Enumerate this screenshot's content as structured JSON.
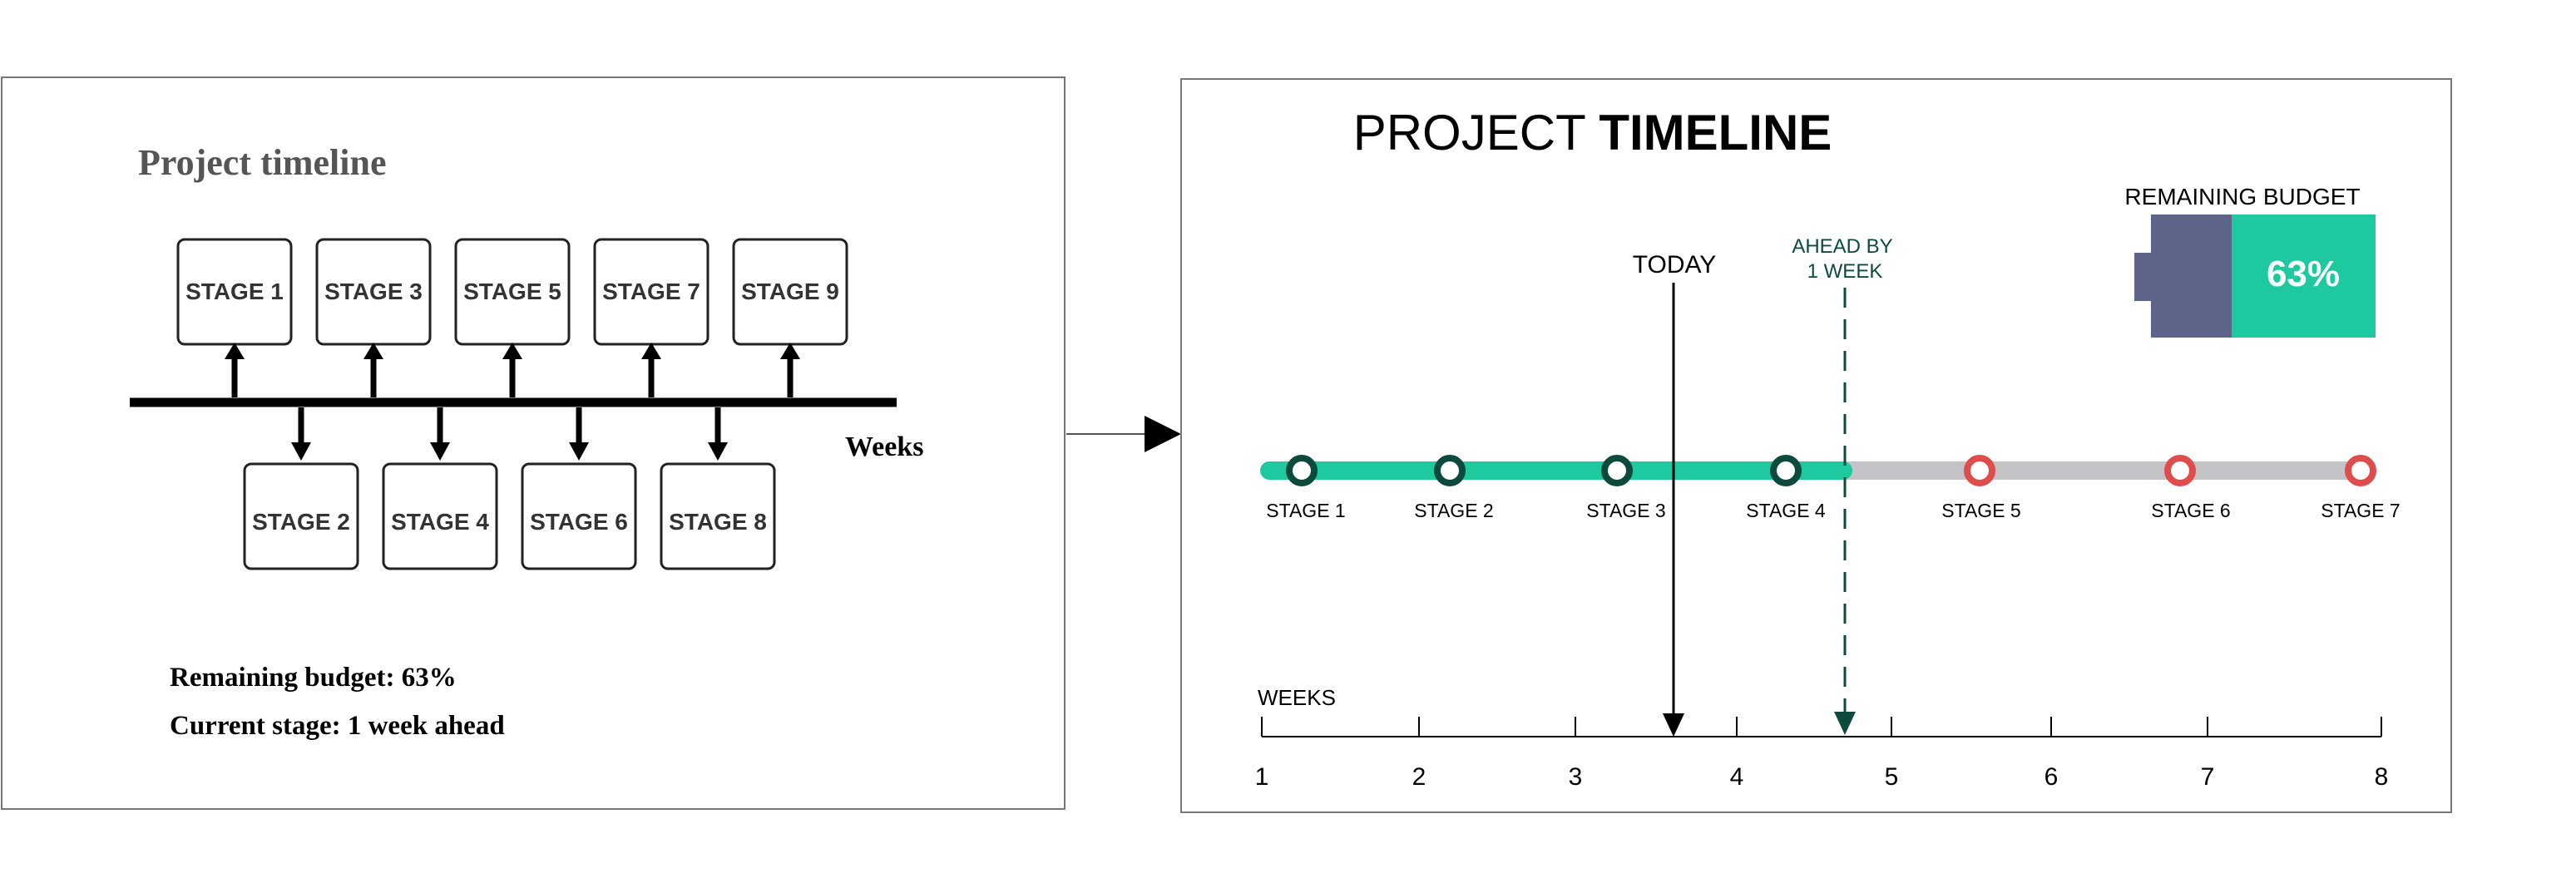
{
  "left_panel": {
    "title": "Project timeline",
    "top_stages": [
      "STAGE 1",
      "STAGE 3",
      "STAGE 5",
      "STAGE 7",
      "STAGE 9"
    ],
    "bottom_stages": [
      "STAGE 2",
      "STAGE 4",
      "STAGE 6",
      "STAGE 8"
    ],
    "axis_label": "Weeks",
    "notes": [
      "Remaining budget: 63%",
      "Current stage: 1 week ahead"
    ]
  },
  "right_panel": {
    "title_light": "PROJECT ",
    "title_bold": "TIMELINE",
    "today_label": "TODAY",
    "ahead_label_line1": "AHEAD BY",
    "ahead_label_line2": "1 WEEK",
    "budget_label": "REMAINING BUDGET",
    "budget_value": "63%",
    "budget_fraction": 0.63,
    "stages": [
      {
        "label": "STAGE 1",
        "status": "complete"
      },
      {
        "label": "STAGE 2",
        "status": "complete"
      },
      {
        "label": "STAGE 3",
        "status": "complete"
      },
      {
        "label": "STAGE 4",
        "status": "complete"
      },
      {
        "label": "STAGE 5",
        "status": "pending"
      },
      {
        "label": "STAGE 6",
        "status": "pending"
      },
      {
        "label": "STAGE 7",
        "status": "pending"
      }
    ],
    "weeks_label": "WEEKS",
    "week_ticks": [
      "1",
      "2",
      "3",
      "4",
      "5",
      "6",
      "7",
      "8"
    ]
  },
  "colors": {
    "teal": "#1ec9a0",
    "dark_green": "#0b4a3c",
    "gray_track": "#c4c4c8",
    "red": "#df4c4c",
    "slate": "#5e6389",
    "black": "#000000"
  }
}
